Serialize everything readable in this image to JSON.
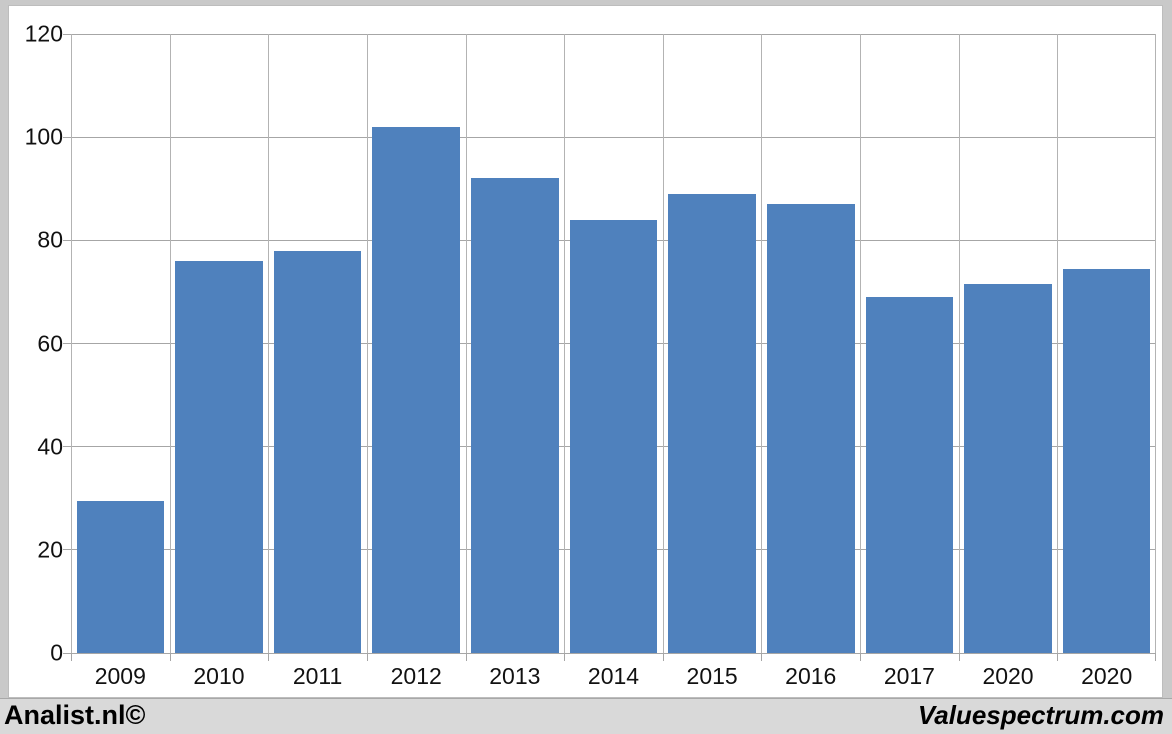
{
  "chart_data": {
    "type": "bar",
    "categories": [
      "2009",
      "2010",
      "2011",
      "2012",
      "2013",
      "2014",
      "2015",
      "2016",
      "2017",
      "2020",
      "2020"
    ],
    "values": [
      29.5,
      76,
      78,
      102,
      92,
      84,
      89,
      87,
      69,
      71.5,
      74.5
    ],
    "title": "",
    "xlabel": "",
    "ylabel": "",
    "ylim": [
      0,
      120
    ],
    "yticks": [
      0,
      20,
      40,
      60,
      80,
      100,
      120
    ],
    "grid": true,
    "legend": "none",
    "bar_color": "#4f81bd",
    "gridline_color": "#b3b3b3",
    "axis_color": "#a6a6a6",
    "plot_background": "#ffffff"
  },
  "footer": {
    "left": "Analist.nl©",
    "right": "Valuespectrum.com"
  },
  "colors": {
    "frame_background": "#c9c9c9",
    "footer_background": "#d9d9d9",
    "chart_background": "#ffffff"
  }
}
